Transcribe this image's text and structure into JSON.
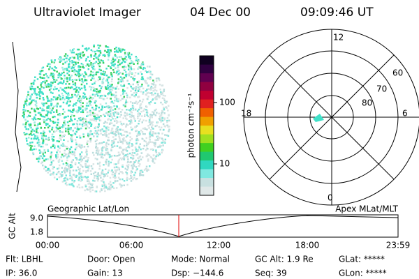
{
  "header": {
    "title": "Ultraviolet Imager",
    "date": "04 Dec 00",
    "time": "09:09:46 UT"
  },
  "colorbar": {
    "unit": "photon cm⁻²s⁻¹",
    "ticks": [
      "100",
      "10"
    ]
  },
  "polar": {
    "labels": {
      "top": "12",
      "left": "18",
      "right": "6",
      "bottom": "0",
      "ring60": "60",
      "ring70": "70",
      "ring80": "80"
    }
  },
  "plot": {
    "left_title": "Geographic Lat/Lon",
    "right_title": "Apex MLat/MLT",
    "y_label": "GC Alt",
    "y_ticks": [
      "9.0",
      "1.8"
    ],
    "x_ticks": [
      "00:00",
      "06:00",
      "12:00",
      "18:00",
      "23:59"
    ]
  },
  "info": {
    "rows": [
      [
        "Flt: LBHL",
        "Door: Open",
        "Mode: Normal",
        "GC Alt: 1.9 Re",
        "GLat: *****"
      ],
      [
        "IP: 36.0",
        "Gain: 13",
        "Dsp: −144.6",
        "Seq: 39",
        "GLon: *****"
      ]
    ]
  }
}
